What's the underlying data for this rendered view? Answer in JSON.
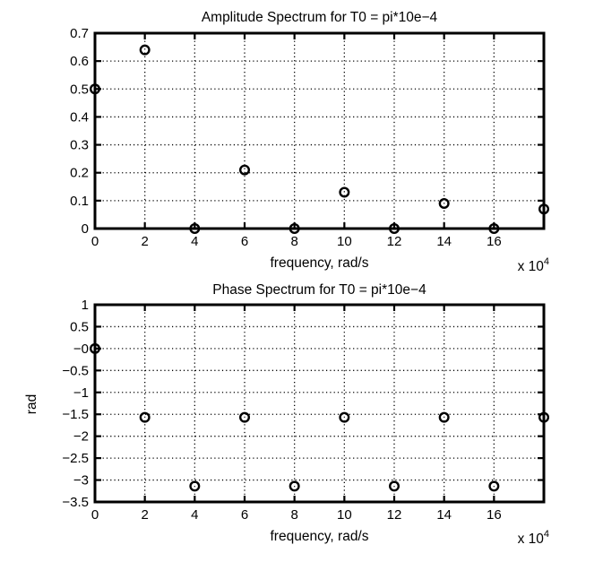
{
  "colors": {
    "foreground": "#000000",
    "background": "#ffffff"
  },
  "chart_data": [
    {
      "type": "scatter",
      "title": "Amplitude Spectrum for T0 = pi*10e−4",
      "xlabel": "frequency, rad/s",
      "ylabel": "",
      "x_multiplier_label": {
        "base": "x 10",
        "exp": "4"
      },
      "xlim": [
        0,
        18
      ],
      "ylim": [
        0,
        0.7
      ],
      "xticks": [
        0,
        2,
        4,
        6,
        8,
        10,
        12,
        14,
        16
      ],
      "xtick_labels": [
        "0",
        "2",
        "4",
        "6",
        "8",
        "10",
        "12",
        "14",
        "16"
      ],
      "yticks": [
        0,
        0.1,
        0.2,
        0.3,
        0.4,
        0.5,
        0.6,
        0.7
      ],
      "ytick_labels": [
        "0",
        "0.1",
        "0.2",
        "0.3",
        "0.4",
        "0.5",
        "0.6",
        "0.7"
      ],
      "grid": true,
      "legend": null,
      "marker": "circle",
      "x": [
        0,
        2,
        4,
        6,
        8,
        10,
        12,
        14,
        16,
        18
      ],
      "y": [
        0.5,
        0.64,
        0,
        0.21,
        0,
        0.13,
        0,
        0.09,
        0,
        0.07
      ]
    },
    {
      "type": "scatter",
      "title": "Phase Spectrum for T0 = pi*10e−4",
      "xlabel": "frequency, rad/s",
      "ylabel": "rad",
      "x_multiplier_label": {
        "base": "x 10",
        "exp": "4"
      },
      "xlim": [
        0,
        18
      ],
      "ylim": [
        -3.5,
        1
      ],
      "xticks": [
        0,
        2,
        4,
        6,
        8,
        10,
        12,
        14,
        16
      ],
      "xtick_labels": [
        "0",
        "2",
        "4",
        "6",
        "8",
        "10",
        "12",
        "14",
        "16"
      ],
      "yticks": [
        1,
        0.5,
        0,
        -0.5,
        -1,
        -1.5,
        -2,
        -2.5,
        -3,
        -3.5
      ],
      "ytick_labels": [
        "1",
        "0.5",
        "−0",
        "−0.5",
        "−1",
        "−1.5",
        "−2",
        "−2.5",
        "−3",
        "−3.5"
      ],
      "grid": true,
      "legend": null,
      "marker": "circle",
      "x": [
        0,
        2,
        4,
        6,
        8,
        10,
        12,
        14,
        16,
        18
      ],
      "y": [
        0,
        -1.57,
        -3.14,
        -1.57,
        -3.14,
        -1.57,
        -3.14,
        -1.57,
        -3.14,
        -1.57
      ]
    }
  ]
}
